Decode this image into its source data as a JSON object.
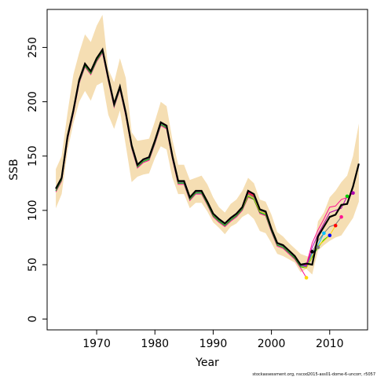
{
  "chart_data": {
    "type": "line",
    "title": "",
    "xlabel": "Year",
    "ylabel": "SSB",
    "xlim": [
      1961.5,
      2016.5
    ],
    "ylim": [
      -10,
      285
    ],
    "x_ticks": [
      1970,
      1980,
      1990,
      2000,
      2010
    ],
    "y_ticks": [
      0,
      50,
      100,
      150,
      200,
      250
    ],
    "grid": false,
    "legend": "none",
    "footer": "stockassessment.org, nscod2015-ass01-dome-6-uncorr, r5057",
    "colors": {
      "band": "#f5deb3",
      "final": "#000000",
      "peels": [
        "#ff1493",
        "#ff0000",
        "#0000ff",
        "#00bfff",
        "#00cd00",
        "#ffd700",
        "#7a7a7a",
        "#b000b0"
      ]
    },
    "band": {
      "x": [
        1963,
        1964,
        1965,
        1966,
        1967,
        1968,
        1969,
        1970,
        1971,
        1972,
        1973,
        1974,
        1975,
        1976,
        1977,
        1978,
        1979,
        1980,
        1981,
        1982,
        1983,
        1984,
        1985,
        1986,
        1987,
        1988,
        1989,
        1990,
        1991,
        1992,
        1993,
        1994,
        1995,
        1996,
        1997,
        1998,
        1999,
        2000,
        2001,
        2002,
        2003,
        2004,
        2005,
        2006,
        2007,
        2008,
        2009,
        2010,
        2011,
        2012,
        2013,
        2014,
        2015
      ],
      "lower": [
        102,
        115,
        155,
        180,
        200,
        210,
        201,
        215,
        218,
        188,
        175,
        192,
        160,
        126,
        131,
        133,
        134,
        148,
        159,
        156,
        130,
        115,
        115,
        102,
        107,
        107,
        99,
        89,
        84,
        78,
        85,
        88,
        94,
        97,
        92,
        81,
        79,
        70,
        60,
        58,
        55,
        52,
        43,
        46,
        41,
        63,
        68,
        72,
        75,
        77,
        85,
        93,
        108
      ],
      "upper": [
        138,
        150,
        190,
        225,
        245,
        262,
        255,
        270,
        280,
        230,
        218,
        240,
        222,
        172,
        164,
        165,
        166,
        182,
        200,
        196,
        165,
        142,
        142,
        128,
        130,
        132,
        124,
        112,
        103,
        98,
        106,
        110,
        118,
        130,
        125,
        110,
        108,
        96,
        80,
        76,
        70,
        65,
        60,
        58,
        56,
        90,
        98,
        112,
        118,
        126,
        132,
        150,
        180
      ]
    },
    "series": [
      {
        "x": [
          1963,
          1964,
          1965,
          1966,
          1967,
          1968,
          1969,
          1970,
          1971,
          1972,
          1973,
          1974,
          1975,
          1976,
          1977,
          1978,
          1979,
          1980,
          1981,
          1982,
          1983,
          1984,
          1985,
          1986,
          1987,
          1988,
          1989,
          1990,
          1991,
          1992,
          1993,
          1994,
          1995,
          1996,
          1997,
          1998,
          1999,
          2000,
          2001,
          2002,
          2003,
          2004,
          2005,
          2006,
          2007,
          2008,
          2009,
          2010,
          2011,
          2012,
          2013,
          2014,
          2015
        ],
        "values": [
          120,
          130,
          168,
          192,
          220,
          235,
          228,
          240,
          248,
          222,
          198,
          214,
          190,
          160,
          142,
          147,
          149,
          164,
          181,
          178,
          150,
          127,
          127,
          112,
          118,
          118,
          108,
          97,
          92,
          88,
          93,
          97,
          103,
          118,
          115,
          101,
          99,
          83,
          70,
          68,
          63,
          58,
          50,
          51,
          50,
          76,
          85,
          94,
          96,
          105,
          106,
          122,
          143
        ]
      },
      {
        "x": [
          1963,
          1964,
          1965,
          1966,
          1967,
          1968,
          1969,
          1970,
          1971,
          1972,
          1973,
          1974,
          1975,
          1976,
          1977,
          1978,
          1979,
          1980,
          1981,
          1982,
          1983,
          1984,
          1985,
          1986,
          1987,
          1988,
          1989,
          1990,
          1991,
          1992,
          1993,
          1994,
          1995,
          1996,
          1997,
          1998,
          1999,
          2000,
          2001,
          2002,
          2003,
          2004,
          2005,
          2006
        ],
        "values": [
          117,
          127,
          165,
          189,
          217,
          232,
          225,
          237,
          245,
          219,
          195,
          211,
          187,
          157,
          139,
          144,
          146,
          161,
          178,
          175,
          147,
          124,
          124,
          109,
          115,
          115,
          105,
          94,
          89,
          85,
          90,
          94,
          100,
          112,
          110,
          97,
          95,
          80,
          67,
          65,
          60,
          55,
          47,
          38
        ]
      },
      {
        "x": [
          1963,
          1964,
          1965,
          1966,
          1967,
          1968,
          1969,
          1970,
          1971,
          1972,
          1973,
          1974,
          1975,
          1976,
          1977,
          1978,
          1979,
          1980,
          1981,
          1982,
          1983,
          1984,
          1985,
          1986,
          1987,
          1988,
          1989,
          1990,
          1991,
          1992,
          1993,
          1994,
          1995,
          1996,
          1997,
          1998,
          1999,
          2000,
          2001,
          2002,
          2003,
          2004,
          2005,
          2006,
          2007
        ],
        "values": [
          119,
          129,
          167,
          191,
          219,
          234,
          227,
          239,
          247,
          221,
          197,
          213,
          189,
          159,
          141,
          146,
          148,
          163,
          180,
          177,
          149,
          126,
          126,
          111,
          117,
          117,
          107,
          96,
          91,
          87,
          92,
          96,
          102,
          116,
          113,
          99,
          97,
          82,
          69,
          67,
          62,
          57,
          49,
          50,
          62
        ]
      },
      {
        "x": [
          1963,
          1964,
          1965,
          1966,
          1967,
          1968,
          1969,
          1970,
          1971,
          1972,
          1973,
          1974,
          1975,
          1976,
          1977,
          1978,
          1979,
          1980,
          1981,
          1982,
          1983,
          1984,
          1985,
          1986,
          1987,
          1988,
          1989,
          1990,
          1991,
          1992,
          1993,
          1994,
          1995,
          1996,
          1997,
          1998,
          1999,
          2000,
          2001,
          2002,
          2003,
          2004,
          2005,
          2006,
          2007,
          2008
        ],
        "values": [
          118,
          128,
          166,
          190,
          218,
          233,
          226,
          238,
          246,
          220,
          196,
          212,
          188,
          158,
          140,
          145,
          147,
          162,
          179,
          176,
          148,
          125,
          125,
          110,
          116,
          116,
          106,
          95,
          90,
          86,
          91,
          95,
          101,
          114,
          111,
          98,
          96,
          81,
          68,
          66,
          61,
          56,
          48,
          48,
          58,
          66
        ]
      },
      {
        "x": [
          1963,
          1964,
          1965,
          1966,
          1967,
          1968,
          1969,
          1970,
          1971,
          1972,
          1973,
          1974,
          1975,
          1976,
          1977,
          1978,
          1979,
          1980,
          1981,
          1982,
          1983,
          1984,
          1985,
          1986,
          1987,
          1988,
          1989,
          1990,
          1991,
          1992,
          1993,
          1994,
          1995,
          1996,
          1997,
          1998,
          1999,
          2000,
          2001,
          2002,
          2003,
          2004,
          2005,
          2006,
          2007,
          2008,
          2009
        ],
        "values": [
          119,
          129,
          167,
          191,
          219,
          234,
          227,
          239,
          247,
          221,
          197,
          213,
          189,
          159,
          141,
          146,
          148,
          163,
          180,
          177,
          149,
          126,
          126,
          111,
          117,
          117,
          107,
          96,
          91,
          87,
          92,
          96,
          102,
          115,
          112,
          99,
          97,
          82,
          69,
          67,
          62,
          57,
          49,
          49,
          60,
          68,
          79
        ]
      },
      {
        "x": [
          1963,
          1964,
          1965,
          1966,
          1967,
          1968,
          1969,
          1970,
          1971,
          1972,
          1973,
          1974,
          1975,
          1976,
          1977,
          1978,
          1979,
          1980,
          1981,
          1982,
          1983,
          1984,
          1985,
          1986,
          1987,
          1988,
          1989,
          1990,
          1991,
          1992,
          1993,
          1994,
          1995,
          1996,
          1997,
          1998,
          1999,
          2000,
          2001,
          2002,
          2003,
          2004,
          2005,
          2006,
          2007,
          2008,
          2009,
          2010
        ],
        "values": [
          118,
          128,
          166,
          190,
          218,
          233,
          226,
          238,
          246,
          220,
          196,
          212,
          188,
          158,
          140,
          145,
          147,
          162,
          179,
          176,
          148,
          125,
          125,
          110,
          116,
          116,
          106,
          95,
          90,
          86,
          91,
          95,
          101,
          113,
          110,
          98,
          96,
          81,
          68,
          66,
          61,
          56,
          48,
          47,
          57,
          66,
          73,
          77
        ]
      },
      {
        "x": [
          1963,
          1964,
          1965,
          1966,
          1967,
          1968,
          1969,
          1970,
          1971,
          1972,
          1973,
          1974,
          1975,
          1976,
          1977,
          1978,
          1979,
          1980,
          1981,
          1982,
          1983,
          1984,
          1985,
          1986,
          1987,
          1988,
          1989,
          1990,
          1991,
          1992,
          1993,
          1994,
          1995,
          1996,
          1997,
          1998,
          1999,
          2000,
          2001,
          2002,
          2003,
          2004,
          2005,
          2006,
          2007,
          2008,
          2009,
          2010,
          2011
        ],
        "values": [
          119,
          129,
          167,
          191,
          219,
          234,
          227,
          239,
          247,
          221,
          197,
          213,
          189,
          159,
          141,
          146,
          148,
          163,
          180,
          177,
          149,
          126,
          126,
          111,
          117,
          117,
          107,
          96,
          91,
          87,
          92,
          96,
          102,
          114,
          111,
          99,
          97,
          82,
          69,
          67,
          62,
          57,
          49,
          47,
          58,
          67,
          72,
          77,
          86
        ]
      },
      {
        "x": [
          1963,
          1964,
          1965,
          1966,
          1967,
          1968,
          1969,
          1970,
          1971,
          1972,
          1973,
          1974,
          1975,
          1976,
          1977,
          1978,
          1979,
          1980,
          1981,
          1982,
          1983,
          1984,
          1985,
          1986,
          1987,
          1988,
          1989,
          1990,
          1991,
          1992,
          1993,
          1994,
          1995,
          1996,
          1997,
          1998,
          1999,
          2000,
          2001,
          2002,
          2003,
          2004,
          2005,
          2006,
          2007,
          2008,
          2009,
          2010,
          2011,
          2012
        ],
        "values": [
          119,
          129,
          167,
          191,
          219,
          234,
          227,
          239,
          247,
          221,
          197,
          213,
          189,
          159,
          141,
          146,
          148,
          163,
          180,
          177,
          149,
          126,
          126,
          111,
          117,
          117,
          107,
          96,
          91,
          87,
          92,
          96,
          102,
          115,
          112,
          100,
          98,
          82,
          69,
          67,
          62,
          57,
          49,
          48,
          62,
          72,
          79,
          85,
          87,
          94
        ]
      },
      {
        "x": [
          1963,
          1964,
          1965,
          1966,
          1967,
          1968,
          1969,
          1970,
          1971,
          1972,
          1973,
          1974,
          1975,
          1976,
          1977,
          1978,
          1979,
          1980,
          1981,
          1982,
          1983,
          1984,
          1985,
          1986,
          1987,
          1988,
          1989,
          1990,
          1991,
          1992,
          1993,
          1994,
          1995,
          1996,
          1997,
          1998,
          1999,
          2000,
          2001,
          2002,
          2003,
          2004,
          2005,
          2006,
          2007,
          2008,
          2009,
          2010,
          2011,
          2012,
          2013
        ],
        "values": [
          120,
          130,
          168,
          192,
          220,
          235,
          228,
          240,
          248,
          222,
          198,
          214,
          190,
          160,
          142,
          147,
          149,
          164,
          181,
          178,
          150,
          127,
          127,
          112,
          118,
          118,
          108,
          97,
          92,
          88,
          93,
          97,
          103,
          117,
          114,
          101,
          99,
          83,
          70,
          68,
          63,
          58,
          50,
          49,
          66,
          78,
          88,
          98,
          100,
          102,
          113
        ]
      },
      {
        "x": [
          1963,
          1964,
          1965,
          1966,
          1967,
          1968,
          1969,
          1970,
          1971,
          1972,
          1973,
          1974,
          1975,
          1976,
          1977,
          1978,
          1979,
          1980,
          1981,
          1982,
          1983,
          1984,
          1985,
          1986,
          1987,
          1988,
          1989,
          1990,
          1991,
          1992,
          1993,
          1994,
          1995,
          1996,
          1997,
          1998,
          1999,
          2000,
          2001,
          2002,
          2003,
          2004,
          2005,
          2006,
          2007,
          2008,
          2009,
          2010,
          2011,
          2012,
          2013,
          2014
        ],
        "values": [
          120,
          130,
          168,
          192,
          220,
          235,
          228,
          240,
          248,
          222,
          198,
          214,
          190,
          160,
          142,
          147,
          149,
          164,
          181,
          178,
          150,
          127,
          127,
          112,
          118,
          118,
          108,
          97,
          92,
          88,
          93,
          97,
          103,
          117,
          114,
          101,
          99,
          83,
          70,
          68,
          63,
          58,
          50,
          50,
          70,
          82,
          92,
          103,
          104,
          110,
          112,
          116
        ]
      }
    ],
    "endpoints": [
      {
        "x": 2006,
        "y": 38
      },
      {
        "x": 2007,
        "y": 62
      },
      {
        "x": 2008,
        "y": 66
      },
      {
        "x": 2009,
        "y": 79
      },
      {
        "x": 2010,
        "y": 77
      },
      {
        "x": 2011,
        "y": 86
      },
      {
        "x": 2012,
        "y": 94
      },
      {
        "x": 2013,
        "y": 113
      },
      {
        "x": 2014,
        "y": 116
      }
    ]
  }
}
